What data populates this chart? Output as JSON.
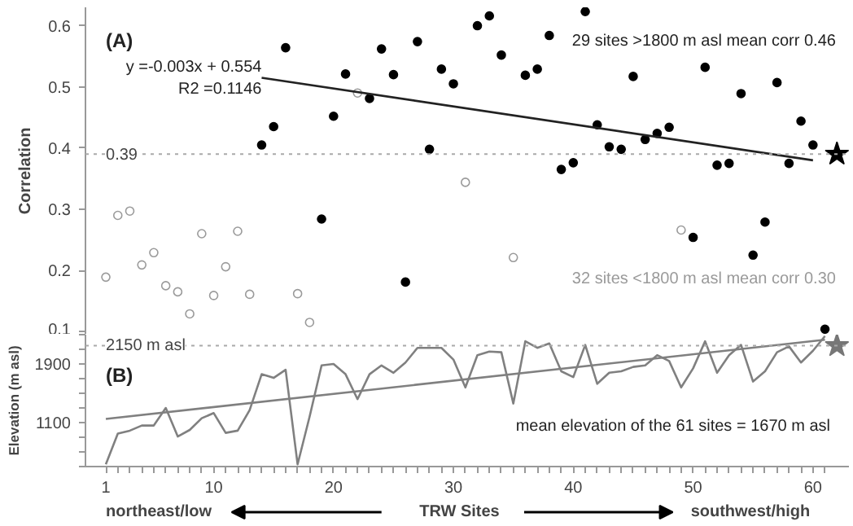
{
  "chart_data": [
    {
      "type": "scatter",
      "ylabel": "Correlation",
      "xlim": [
        -0.7,
        63
      ],
      "ylim": [
        0.095,
        0.63
      ],
      "yticks": [
        0.1,
        0.2,
        0.3,
        0.4,
        0.5,
        0.6
      ],
      "tick_labels": "y",
      "annotations": [
        "(A)",
        "y =-0.003x + 0.554",
        "R2 =0.1146",
        "29 sites >1800 m asl mean corr 0.46",
        "32 sites <1800 m asl mean corr 0.30"
      ],
      "ref_lines": [
        {
          "axis": "y",
          "value": 0.39,
          "label": "0.39",
          "color": "#aaaaaa",
          "line_style": "dotted"
        }
      ],
      "series": [
        {
          "marker": "circle",
          "color": "#000000",
          "x": [
            14,
            15,
            16,
            19,
            20,
            21,
            23,
            24,
            25,
            26,
            27,
            28,
            29,
            30,
            32,
            33,
            34,
            36,
            37,
            38,
            39,
            40,
            41,
            42,
            43,
            44,
            45,
            46,
            47,
            48,
            50,
            51,
            52,
            53,
            54,
            55,
            56,
            57,
            58,
            59,
            60,
            61
          ],
          "values": [
            0.405,
            0.435,
            0.564,
            0.284,
            0.452,
            0.521,
            0.481,
            0.562,
            0.52,
            0.181,
            0.574,
            0.398,
            0.529,
            0.505,
            0.6,
            0.616,
            0.552,
            0.519,
            0.529,
            0.584,
            0.365,
            0.376,
            0.623,
            0.438,
            0.402,
            0.398,
            0.517,
            0.414,
            0.424,
            0.434,
            0.254,
            0.532,
            0.372,
            0.375,
            0.489,
            0.225,
            0.279,
            0.507,
            0.375,
            0.444,
            0.405,
            0.104
          ]
        },
        {
          "marker": "circle_open",
          "color": "#9a9a9a",
          "x": [
            1,
            2,
            3,
            4,
            5,
            6,
            7,
            8,
            9,
            10,
            11,
            12,
            13,
            17,
            18,
            22,
            31,
            35,
            49
          ],
          "values": [
            0.189,
            0.29,
            0.297,
            0.209,
            0.229,
            0.175,
            0.165,
            0.129,
            0.26,
            0.159,
            0.206,
            0.264,
            0.161,
            0.162,
            0.115,
            0.49,
            0.344,
            0.221,
            0.266
          ]
        },
        {
          "type": "line",
          "color": "#222222",
          "x": [
            14,
            60
          ],
          "values": [
            0.515,
            0.38
          ]
        },
        {
          "marker": "star",
          "color": "#000000",
          "x": [
            62
          ],
          "values": [
            0.39
          ]
        }
      ]
    },
    {
      "type": "line",
      "xlabel": "TRW Sites",
      "ylabel": "Elevation (m asl)",
      "xlim": [
        -0.7,
        63
      ],
      "ylim": [
        500,
        2300
      ],
      "yticks": [
        {
          "value": 500,
          "label": null
        },
        {
          "value": 700,
          "label": null
        },
        {
          "value": 900,
          "label": null
        },
        1100,
        {
          "value": 1300,
          "label": null
        },
        {
          "value": 1500,
          "label": null
        },
        {
          "value": 1700,
          "label": null
        },
        1900,
        {
          "value": 2100,
          "label": null
        },
        {
          "value": 2300,
          "label": null
        }
      ],
      "xticks": [
        1,
        {
          "value": 2,
          "label": null
        },
        {
          "value": 3,
          "label": null
        },
        {
          "value": 4,
          "label": null
        },
        {
          "value": 5,
          "label": null
        },
        {
          "value": 6,
          "label": null
        },
        {
          "value": 7,
          "label": null
        },
        {
          "value": 8,
          "label": null
        },
        {
          "value": 9,
          "label": null
        },
        10,
        {
          "value": 11,
          "label": null
        },
        {
          "value": 12,
          "label": null
        },
        {
          "value": 13,
          "label": null
        },
        {
          "value": 14,
          "label": null
        },
        {
          "value": 15,
          "label": null
        },
        {
          "value": 16,
          "label": null
        },
        {
          "value": 17,
          "label": null
        },
        {
          "value": 18,
          "label": null
        },
        {
          "value": 19,
          "label": null
        },
        20,
        {
          "value": 21,
          "label": null
        },
        {
          "value": 22,
          "label": null
        },
        {
          "value": 23,
          "label": null
        },
        {
          "value": 24,
          "label": null
        },
        {
          "value": 25,
          "label": null
        },
        {
          "value": 26,
          "label": null
        },
        {
          "value": 27,
          "label": null
        },
        {
          "value": 28,
          "label": null
        },
        {
          "value": 29,
          "label": null
        },
        30,
        {
          "value": 31,
          "label": null
        },
        {
          "value": 32,
          "label": null
        },
        {
          "value": 33,
          "label": null
        },
        {
          "value": 34,
          "label": null
        },
        {
          "value": 35,
          "label": null
        },
        {
          "value": 36,
          "label": null
        },
        {
          "value": 37,
          "label": null
        },
        {
          "value": 38,
          "label": null
        },
        {
          "value": 39,
          "label": null
        },
        40,
        {
          "value": 41,
          "label": null
        },
        {
          "value": 42,
          "label": null
        },
        {
          "value": 43,
          "label": null
        },
        {
          "value": 44,
          "label": null
        },
        {
          "value": 45,
          "label": null
        },
        {
          "value": 46,
          "label": null
        },
        {
          "value": 47,
          "label": null
        },
        {
          "value": 48,
          "label": null
        },
        {
          "value": 49,
          "label": null
        },
        50,
        {
          "value": 51,
          "label": null
        },
        {
          "value": 52,
          "label": null
        },
        {
          "value": 53,
          "label": null
        },
        {
          "value": 54,
          "label": null
        },
        {
          "value": 55,
          "label": null
        },
        {
          "value": 56,
          "label": null
        },
        {
          "value": 57,
          "label": null
        },
        {
          "value": 58,
          "label": null
        },
        {
          "value": 59,
          "label": null
        },
        60,
        {
          "value": 61,
          "label": null
        }
      ],
      "annotations": [
        "(B)",
        "mean elevation of the 61 sites = 1670 m asl",
        "northeast/low",
        "southwest/high"
      ],
      "ref_lines": [
        {
          "axis": "y",
          "value": 2150,
          "label": "2150 m asl",
          "color": "#aaaaaa",
          "line_style": "dotted"
        }
      ],
      "series": [
        {
          "color": "#808080",
          "x": [
            1,
            2,
            3,
            4,
            5,
            6,
            7,
            8,
            9,
            10,
            11,
            12,
            13,
            14,
            15,
            16,
            17,
            18,
            19,
            20,
            21,
            22,
            23,
            24,
            25,
            26,
            27,
            28,
            29,
            30,
            31,
            32,
            33,
            34,
            35,
            36,
            37,
            38,
            39,
            40,
            41,
            42,
            43,
            44,
            45,
            46,
            47,
            48,
            49,
            50,
            51,
            52,
            53,
            54,
            55,
            56,
            57,
            58,
            59,
            60,
            61
          ],
          "values": [
            530,
            950,
            990,
            1060,
            1060,
            1300,
            910,
            1000,
            1160,
            1230,
            960,
            990,
            1270,
            1760,
            1710,
            1820,
            530,
            1180,
            1880,
            1900,
            1760,
            1420,
            1760,
            1880,
            1780,
            1920,
            2120,
            2120,
            2120,
            1960,
            1580,
            2020,
            2070,
            2060,
            1360,
            2210,
            2120,
            2180,
            1800,
            1720,
            2160,
            1630,
            1780,
            1800,
            1860,
            1880,
            2020,
            1940,
            1580,
            1840,
            2210,
            1780,
            2020,
            2160,
            1660,
            1800,
            2060,
            2140,
            1920,
            2080,
            2280
          ]
        },
        {
          "color": "#808080",
          "x": [
            1,
            61
          ],
          "values": [
            1150,
            2230
          ]
        },
        {
          "type": "scatter",
          "marker": "star",
          "color": "#777777",
          "x": [
            62
          ],
          "values": [
            2150
          ]
        }
      ]
    }
  ]
}
